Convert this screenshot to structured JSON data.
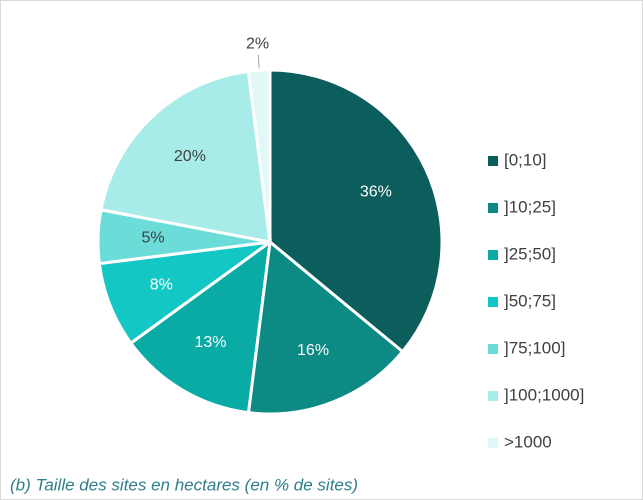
{
  "chart_data": {
    "type": "pie",
    "caption": "(b) Taille des sites en hectares (en % de sites)",
    "categories": [
      "[0;10]",
      "]10;25]",
      "]25;50]",
      "]50;75]",
      "]75;100]",
      "]100;1000]",
      ">1000"
    ],
    "values": [
      36,
      16,
      13,
      8,
      5,
      20,
      2
    ],
    "value_labels": [
      "36%",
      "16%",
      "13%",
      "8%",
      "5%",
      "20%",
      "2%"
    ],
    "colors": [
      "#0b5e5c",
      "#0e8a85",
      "#0aaba5",
      "#13c8c4",
      "#6cdcd8",
      "#a8ecea",
      "#e0f8f7"
    ],
    "legend": "right"
  }
}
